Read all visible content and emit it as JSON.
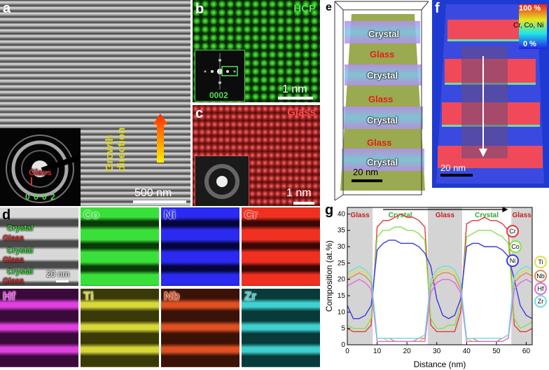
{
  "panel_a": {
    "label": "a",
    "inset_text": "Glass",
    "inset_index": "0 0 0 2",
    "growth_label_1": "Growth",
    "growth_label_2": "direction",
    "scale_text": "500 nm"
  },
  "panel_b": {
    "label": "b",
    "tag": "HCP",
    "inset_index": "0002",
    "scale_text": "1 nm"
  },
  "panel_c": {
    "label": "c",
    "tag": "Glass",
    "scale_text": "1 nm"
  },
  "panel_e": {
    "label": "e",
    "layers": [
      "Crystal",
      "Glass",
      "Crystal",
      "Glass",
      "Crystal",
      "Glass",
      "Crystal"
    ],
    "scale_text": "20 nm"
  },
  "panel_f": {
    "label": "f",
    "legend_max": "100 %",
    "legend_mid": "Cr, Co, Ni",
    "legend_min": "0 %",
    "scale_text": "20 nm"
  },
  "panel_d": {
    "label": "d",
    "layers": [
      "Crystal",
      "Glass",
      "Crystal",
      "Glass",
      "Crystal",
      "Glass"
    ],
    "scale_text": "20 nm",
    "elements": [
      {
        "name": "Co",
        "color": "#3ae03a",
        "dark": "#0a3a08"
      },
      {
        "name": "Ni",
        "color": "#2a2af0",
        "dark": "#05053a"
      },
      {
        "name": "Cr",
        "color": "#f03020",
        "dark": "#3a0805"
      },
      {
        "name": "Hf",
        "color": "#e040e0",
        "dark": "#3a0a3a"
      },
      {
        "name": "Ti",
        "color": "#d8d838",
        "dark": "#3a3a08"
      },
      {
        "name": "Nb",
        "color": "#e05020",
        "dark": "#3a1208"
      },
      {
        "name": "Zr",
        "color": "#40d0d0",
        "dark": "#083a3a"
      }
    ]
  },
  "panel_g": {
    "label": "g",
    "region_labels": [
      "Glass",
      "Crystal",
      "Glass",
      "Crystal",
      "Glass"
    ],
    "legend": [
      {
        "name": "Cr",
        "color": "#e23a3a"
      },
      {
        "name": "Co",
        "color": "#86e24a"
      },
      {
        "name": "Ni",
        "color": "#3a3ae2"
      },
      {
        "name": "Ti",
        "color": "#dede4a"
      },
      {
        "name": "Nb",
        "color": "#e08a5a"
      },
      {
        "name": "Hf",
        "color": "#e06ae0"
      },
      {
        "name": "Zr",
        "color": "#6adede"
      }
    ]
  },
  "chart_data": {
    "type": "line",
    "title": "",
    "xlabel": "Distance (nm)",
    "ylabel": "Composition (at.%)",
    "xlim": [
      0,
      62
    ],
    "ylim": [
      0,
      42
    ],
    "xticks": [
      0,
      10,
      20,
      30,
      40,
      50,
      60
    ],
    "yticks": [
      0,
      5,
      10,
      15,
      20,
      25,
      30,
      35,
      40
    ],
    "glass_regions": [
      [
        0,
        8.5
      ],
      [
        27,
        38.5
      ],
      [
        55,
        62
      ]
    ],
    "x": [
      0,
      2,
      4,
      6,
      8,
      10,
      12,
      14,
      16,
      18,
      20,
      22,
      24,
      26,
      28,
      30,
      32,
      34,
      36,
      38,
      40,
      42,
      44,
      46,
      48,
      50,
      52,
      54,
      56,
      58,
      60,
      62
    ],
    "series": [
      {
        "name": "Cr",
        "values": [
          5,
          4,
          4,
          4,
          6,
          36,
          38,
          38,
          39,
          40,
          39,
          39,
          38,
          36,
          6,
          4,
          4,
          4,
          4,
          10,
          37,
          38,
          38,
          39,
          38,
          38,
          37,
          35,
          6,
          4,
          4,
          5
        ]
      },
      {
        "name": "Co",
        "values": [
          6,
          5,
          5,
          5,
          8,
          33,
          35,
          35,
          36,
          36,
          35,
          35,
          34,
          32,
          8,
          5,
          5,
          6,
          6,
          12,
          33,
          34,
          35,
          35,
          35,
          34,
          33,
          31,
          8,
          5,
          6,
          7
        ]
      },
      {
        "name": "Ni",
        "values": [
          12,
          8,
          8,
          9,
          12,
          29,
          31,
          32,
          32,
          31,
          31,
          31,
          30,
          28,
          24,
          14,
          9,
          8,
          9,
          14,
          30,
          31,
          31,
          30,
          30,
          30,
          29,
          27,
          20,
          12,
          9,
          8
        ]
      },
      {
        "name": "Ti",
        "values": [
          21,
          22,
          23,
          22,
          20,
          2,
          2,
          1,
          1,
          1,
          1,
          1,
          1,
          2,
          19,
          22,
          23,
          23,
          22,
          18,
          2,
          1,
          1,
          1,
          1,
          1,
          1,
          2,
          20,
          22,
          23,
          22
        ]
      },
      {
        "name": "Nb",
        "values": [
          20,
          21,
          22,
          21,
          19,
          2,
          2,
          2,
          1,
          1,
          1,
          1,
          2,
          2,
          18,
          21,
          22,
          22,
          21,
          17,
          2,
          2,
          1,
          1,
          1,
          1,
          2,
          3,
          19,
          21,
          22,
          21
        ]
      },
      {
        "name": "Hf",
        "values": [
          18,
          19,
          20,
          19,
          17,
          1,
          1,
          1,
          1,
          1,
          1,
          1,
          1,
          1,
          16,
          19,
          20,
          20,
          19,
          16,
          1,
          1,
          1,
          1,
          1,
          1,
          1,
          2,
          17,
          19,
          20,
          19
        ]
      },
      {
        "name": "Zr",
        "values": [
          22,
          23,
          24,
          23,
          21,
          2,
          2,
          2,
          2,
          2,
          2,
          2,
          2,
          3,
          20,
          23,
          24,
          24,
          23,
          19,
          2,
          2,
          2,
          2,
          2,
          2,
          2,
          3,
          21,
          23,
          24,
          23
        ]
      }
    ]
  }
}
